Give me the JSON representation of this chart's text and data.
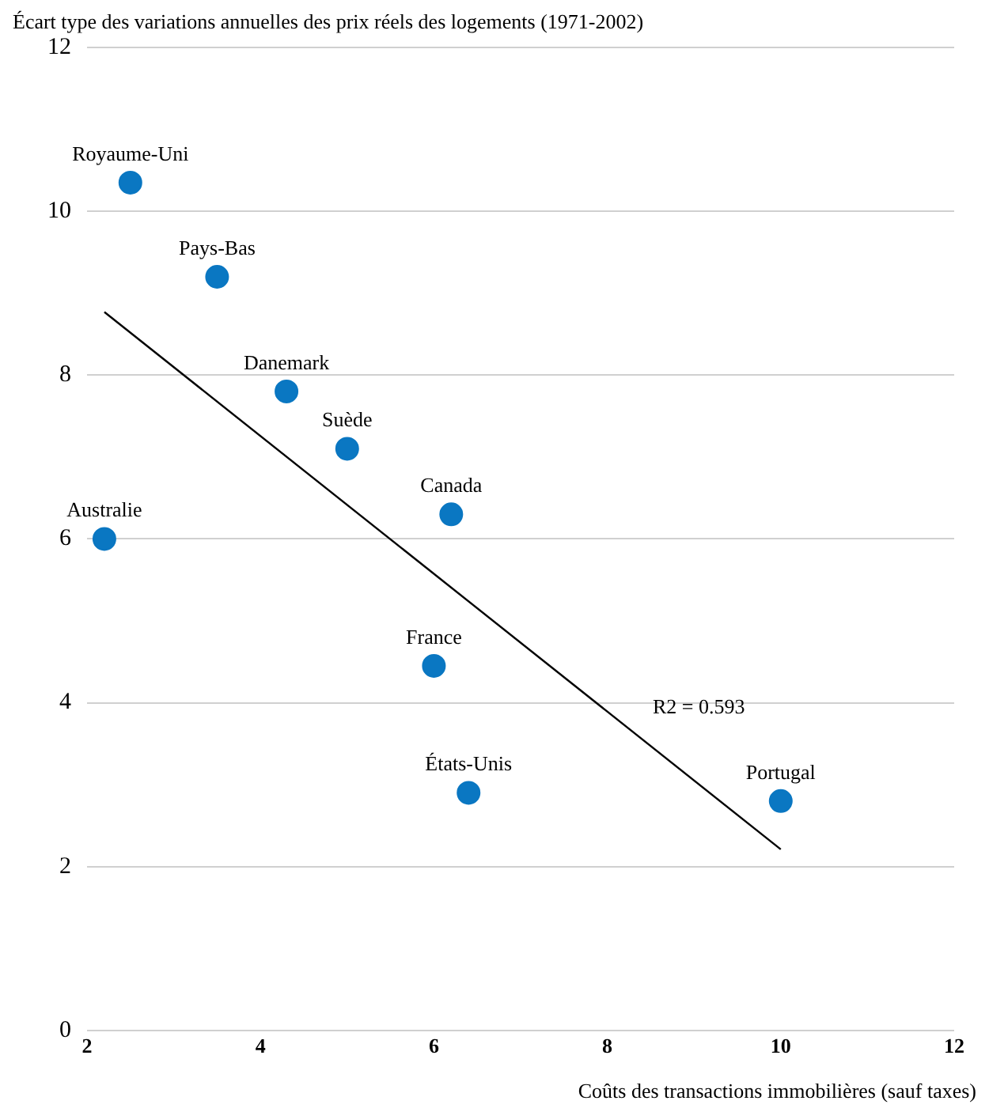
{
  "chart_data": {
    "type": "scatter",
    "ylabel": "Écart type des variations annuelles des prix réels des logements (1971-2002)",
    "xlabel": "Coûts des transactions immobilières (sauf taxes)",
    "xlim": [
      2,
      12
    ],
    "xticks": [
      2,
      4,
      6,
      8,
      10,
      12
    ],
    "ylim": [
      0,
      12
    ],
    "yticks": [
      0,
      2,
      4,
      6,
      8,
      10,
      12
    ],
    "grid": "y",
    "marker": "circle",
    "legend": false,
    "series": [
      {
        "name": "Royaume-Uni",
        "color": "#0a77c2",
        "x": [
          2.5
        ],
        "values": [
          10.35
        ]
      },
      {
        "name": "Pays-Bas",
        "color": "#0a77c2",
        "x": [
          3.5
        ],
        "values": [
          9.2
        ]
      },
      {
        "name": "Danemark",
        "color": "#0a77c2",
        "x": [
          4.3
        ],
        "values": [
          7.8
        ]
      },
      {
        "name": "Suède",
        "color": "#0a77c2",
        "x": [
          5.0
        ],
        "values": [
          7.1
        ]
      },
      {
        "name": "Canada",
        "color": "#0a77c2",
        "x": [
          6.2
        ],
        "values": [
          6.3
        ]
      },
      {
        "name": "Australie",
        "color": "#0a77c2",
        "x": [
          2.2
        ],
        "values": [
          6.0
        ]
      },
      {
        "name": "France",
        "color": "#0a77c2",
        "x": [
          6.0
        ],
        "values": [
          4.45
        ]
      },
      {
        "name": "États-Unis",
        "color": "#0a77c2",
        "x": [
          6.4
        ],
        "values": [
          2.9
        ]
      },
      {
        "name": "Portugal",
        "color": "#0a77c2",
        "x": [
          10.0
        ],
        "values": [
          2.8
        ]
      },
      {
        "type": "line",
        "color": "#000000",
        "marker": "none",
        "x": [
          2.2,
          10.0
        ],
        "values": [
          8.77,
          2.21
        ]
      }
    ],
    "annotations": [
      "R2 = 0.593"
    ]
  }
}
